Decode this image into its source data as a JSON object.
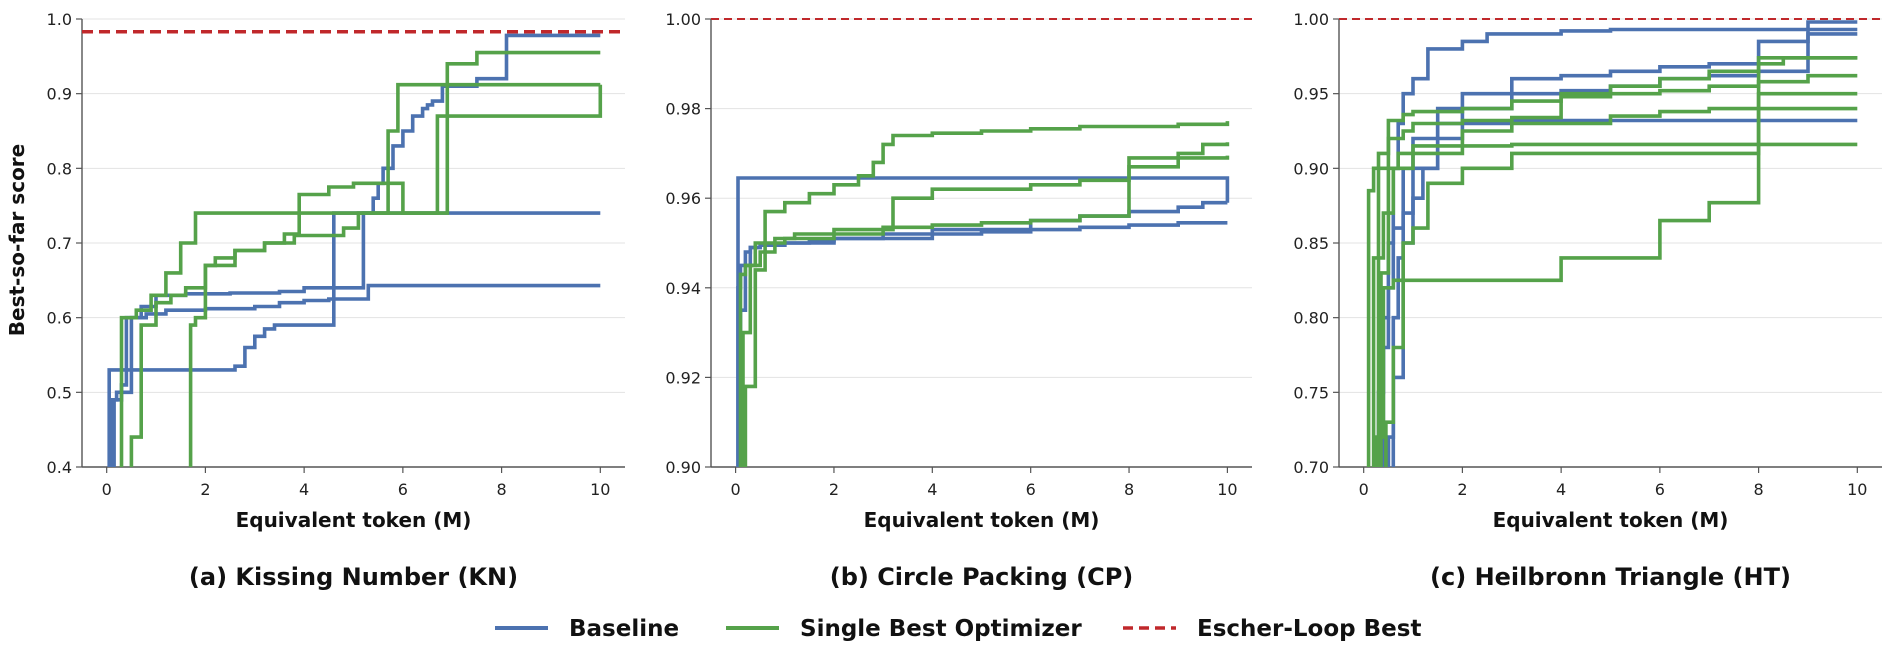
{
  "ylabel": "Best-so-far score",
  "legend": {
    "placement": "bottom-center",
    "items": [
      {
        "label": "Baseline",
        "color": "#4c72b0",
        "style": "solid"
      },
      {
        "label": "Single Best Optimizer",
        "color": "#55a24a",
        "style": "solid"
      },
      {
        "label": "Escher-Loop Best",
        "color": "#c0282b",
        "style": "dashed"
      }
    ]
  },
  "chart_data": [
    {
      "type": "line",
      "title": "(a) Kissing Number (KN)",
      "xlabel": "Equivalent token (M)",
      "ylabel": "Best-so-far score",
      "xlim": [
        -0.5,
        10.5
      ],
      "ylim": [
        0.4,
        1.0
      ],
      "xticks": [
        0,
        2,
        4,
        6,
        8,
        10
      ],
      "yticks": [
        0.4,
        0.5,
        0.6,
        0.7,
        0.8,
        0.9,
        1.0
      ],
      "ytick_labels": [
        "0.4",
        "0.5",
        "0.6",
        "0.7",
        "0.8",
        "0.9",
        "1.0"
      ],
      "grid": "horizontal",
      "reference": {
        "name": "Escher-Loop Best",
        "y": 0.983
      },
      "series": [
        {
          "group": "Baseline",
          "x": [
            0.05,
            0.05,
            0.1,
            0.1,
            0.2,
            0.3,
            0.5,
            0.6,
            1.0,
            1.8,
            2.6,
            2.8,
            3.0,
            3.2,
            3.4,
            4.6,
            4.6,
            10.0
          ],
          "y": [
            0.4,
            0.53,
            0.53,
            0.53,
            0.53,
            0.53,
            0.53,
            0.53,
            0.53,
            0.53,
            0.535,
            0.56,
            0.575,
            0.585,
            0.59,
            0.59,
            0.74,
            0.74
          ]
        },
        {
          "group": "Baseline",
          "x": [
            0.1,
            0.1,
            0.2,
            0.3,
            0.4,
            0.7,
            1.0,
            1.6,
            2.5,
            3.5,
            4.0,
            4.5,
            5.2,
            5.4,
            5.5,
            5.6,
            5.8,
            6.0,
            6.2,
            6.4,
            6.5,
            6.6,
            6.8,
            7.5,
            8.1,
            8.1,
            10.0
          ],
          "y": [
            0.4,
            0.49,
            0.5,
            0.51,
            0.6,
            0.615,
            0.63,
            0.632,
            0.633,
            0.635,
            0.64,
            0.64,
            0.74,
            0.76,
            0.78,
            0.8,
            0.83,
            0.85,
            0.87,
            0.88,
            0.885,
            0.89,
            0.91,
            0.92,
            0.935,
            0.978,
            0.978
          ]
        },
        {
          "group": "Baseline",
          "x": [
            0.15,
            0.15,
            0.3,
            0.5,
            0.8,
            1.2,
            2.0,
            3.0,
            3.5,
            4.0,
            4.5,
            5.3,
            10.0
          ],
          "y": [
            0.4,
            0.49,
            0.5,
            0.6,
            0.605,
            0.61,
            0.612,
            0.615,
            0.62,
            0.623,
            0.625,
            0.643,
            0.643
          ]
        },
        {
          "group": "Single Best Optimizer",
          "x": [
            0.3,
            0.3,
            0.6,
            0.9,
            1.2,
            1.5,
            1.8,
            2.2,
            2.7,
            3.1,
            3.4,
            3.7,
            4.0,
            4.3,
            4.6,
            5.0,
            5.3,
            5.5,
            5.7,
            5.9,
            10.0
          ],
          "y": [
            0.4,
            0.6,
            0.61,
            0.63,
            0.66,
            0.7,
            0.74,
            0.74,
            0.74,
            0.74,
            0.74,
            0.74,
            0.74,
            0.74,
            0.74,
            0.74,
            0.74,
            0.74,
            0.85,
            0.912,
            0.912
          ]
        },
        {
          "group": "Single Best Optimizer",
          "x": [
            0.5,
            0.5,
            0.7,
            1.0,
            1.3,
            1.6,
            2.0,
            2.6,
            3.2,
            3.6,
            3.9,
            4.5,
            5.0,
            5.5,
            6.0,
            6.4,
            6.7,
            6.9,
            7.5,
            10.0
          ],
          "y": [
            0.4,
            0.44,
            0.59,
            0.62,
            0.63,
            0.64,
            0.67,
            0.69,
            0.7,
            0.712,
            0.765,
            0.775,
            0.78,
            0.78,
            0.74,
            0.74,
            0.74,
            0.94,
            0.955,
            0.955
          ]
        },
        {
          "group": "Single Best Optimizer",
          "x": [
            1.7,
            1.7,
            1.8,
            2.0,
            2.2,
            2.6,
            3.2,
            3.8,
            4.3,
            4.8,
            5.1,
            5.6,
            6.1,
            6.7,
            10.0
          ],
          "y": [
            0.4,
            0.59,
            0.6,
            0.67,
            0.68,
            0.69,
            0.7,
            0.71,
            0.71,
            0.72,
            0.74,
            0.74,
            0.74,
            0.87,
            0.912
          ]
        }
      ]
    },
    {
      "type": "line",
      "title": "(b) Circle Packing (CP)",
      "xlabel": "Equivalent token (M)",
      "ylabel": "",
      "xlim": [
        -0.5,
        10.5
      ],
      "ylim": [
        0.9,
        1.0
      ],
      "xticks": [
        0,
        2,
        4,
        6,
        8,
        10
      ],
      "yticks": [
        0.9,
        0.92,
        0.94,
        0.96,
        0.98,
        1.0
      ],
      "ytick_labels": [
        "0.90",
        "0.92",
        "0.94",
        "0.96",
        "0.98",
        "1.00"
      ],
      "grid": "horizontal",
      "reference": {
        "name": "Escher-Loop Best",
        "y": 1.0
      },
      "series": [
        {
          "group": "Baseline",
          "x": [
            0.05,
            0.05,
            10.0,
            10.0
          ],
          "y": [
            0.9,
            0.9645,
            0.9645,
            0.959
          ]
        },
        {
          "group": "Baseline",
          "x": [
            0.05,
            0.05,
            0.1,
            0.2,
            0.3,
            0.5,
            1.0,
            1.5,
            2.0,
            3.0,
            4.0,
            5.0,
            6.0,
            7.0,
            8.0,
            9.0,
            9.8,
            10.0
          ],
          "y": [
            0.9,
            0.94,
            0.945,
            0.948,
            0.949,
            0.9495,
            0.95,
            0.9505,
            0.951,
            0.951,
            0.952,
            0.9525,
            0.953,
            0.9535,
            0.954,
            0.9545,
            0.9545,
            0.9545
          ]
        },
        {
          "group": "Baseline",
          "x": [
            0.1,
            0.1,
            0.2,
            0.3,
            0.5,
            1.0,
            2.0,
            3.0,
            4.0,
            6.0,
            7.0,
            8.0,
            9.0,
            9.5,
            10.0
          ],
          "y": [
            0.9,
            0.935,
            0.945,
            0.949,
            0.9495,
            0.95,
            0.951,
            0.952,
            0.953,
            0.955,
            0.956,
            0.957,
            0.958,
            0.959,
            0.959
          ]
        },
        {
          "group": "Single Best Optimizer",
          "x": [
            0.1,
            0.1,
            0.2,
            0.4,
            0.6,
            1.0,
            1.5,
            2.0,
            2.5,
            2.8,
            3.0,
            3.2,
            4.0,
            5.0,
            6.0,
            7.0,
            8.0,
            9.0,
            10.0
          ],
          "y": [
            0.9,
            0.943,
            0.945,
            0.95,
            0.957,
            0.959,
            0.961,
            0.963,
            0.965,
            0.968,
            0.972,
            0.974,
            0.9745,
            0.975,
            0.9755,
            0.976,
            0.976,
            0.9765,
            0.9772
          ]
        },
        {
          "group": "Single Best Optimizer",
          "x": [
            0.15,
            0.15,
            0.3,
            0.5,
            0.8,
            1.2,
            2.0,
            3.0,
            4.0,
            5.0,
            6.0,
            7.0,
            7.6,
            8.0,
            9.0,
            9.5,
            10.0
          ],
          "y": [
            0.9,
            0.93,
            0.945,
            0.948,
            0.951,
            0.952,
            0.953,
            0.9535,
            0.954,
            0.9545,
            0.955,
            0.956,
            0.956,
            0.969,
            0.97,
            0.972,
            0.9725
          ]
        },
        {
          "group": "Single Best Optimizer",
          "x": [
            0.2,
            0.2,
            0.4,
            0.6,
            1.0,
            2.0,
            3.0,
            3.2,
            4.0,
            5.0,
            6.0,
            7.0,
            8.0,
            9.0,
            10.0
          ],
          "y": [
            0.9,
            0.918,
            0.944,
            0.95,
            0.951,
            0.952,
            0.953,
            0.96,
            0.962,
            0.962,
            0.963,
            0.964,
            0.967,
            0.969,
            0.9695
          ]
        }
      ]
    },
    {
      "type": "line",
      "title": "(c) Heilbronn Triangle (HT)",
      "xlabel": "Equivalent token (M)",
      "ylabel": "",
      "xlim": [
        -0.5,
        10.5
      ],
      "ylim": [
        0.7,
        1.0
      ],
      "xticks": [
        0,
        2,
        4,
        6,
        8,
        10
      ],
      "yticks": [
        0.7,
        0.75,
        0.8,
        0.85,
        0.9,
        0.95,
        1.0
      ],
      "ytick_labels": [
        "0.70",
        "0.75",
        "0.80",
        "0.85",
        "0.90",
        "0.95",
        "1.00"
      ],
      "grid": "horizontal",
      "reference": {
        "name": "Escher-Loop Best",
        "y": 1.0
      },
      "series": [
        {
          "group": "Baseline",
          "x": [
            0.3,
            0.3,
            0.4,
            0.5,
            0.6,
            0.7,
            0.8,
            1.0,
            1.3,
            2.0,
            2.5,
            3.0,
            4.0,
            5.0,
            6.0,
            7.0,
            7.5,
            8.0,
            9.0,
            10.0
          ],
          "y": [
            0.7,
            0.75,
            0.8,
            0.85,
            0.9,
            0.93,
            0.95,
            0.96,
            0.98,
            0.985,
            0.99,
            0.99,
            0.992,
            0.993,
            0.993,
            0.993,
            0.993,
            0.993,
            0.993,
            0.993
          ]
        },
        {
          "group": "Baseline",
          "x": [
            0.4,
            0.4,
            0.5,
            0.6,
            0.8,
            1.0,
            1.5,
            2.0,
            3.0,
            4.0,
            5.0,
            6.0,
            7.0,
            8.0,
            9.0,
            10.0
          ],
          "y": [
            0.7,
            0.78,
            0.82,
            0.86,
            0.9,
            0.92,
            0.94,
            0.95,
            0.96,
            0.962,
            0.965,
            0.968,
            0.97,
            0.985,
            0.99,
            0.99
          ]
        },
        {
          "group": "Baseline",
          "x": [
            0.5,
            0.5,
            0.6,
            0.7,
            0.8,
            1.0,
            1.5,
            2.0,
            3.0,
            4.0,
            5.0,
            6.0,
            7.0,
            8.0,
            9.0,
            10.0
          ],
          "y": [
            0.7,
            0.72,
            0.8,
            0.84,
            0.87,
            0.9,
            0.93,
            0.94,
            0.95,
            0.952,
            0.955,
            0.96,
            0.962,
            0.965,
            0.998,
            0.998
          ]
        },
        {
          "group": "Baseline",
          "x": [
            0.6,
            0.6,
            0.8,
            1.0,
            1.2,
            1.5,
            2.0,
            3.0,
            4.0,
            6.0,
            8.0,
            10.0
          ],
          "y": [
            0.7,
            0.76,
            0.85,
            0.88,
            0.9,
            0.92,
            0.93,
            0.932,
            0.932,
            0.932,
            0.932,
            0.932
          ]
        },
        {
          "group": "Single Best Optimizer",
          "x": [
            0.1,
            0.1,
            0.2,
            0.3,
            0.5,
            0.8,
            1.0,
            2.0,
            3.0,
            4.0,
            5.0,
            6.0,
            7.0,
            8.0,
            8.5,
            10.0
          ],
          "y": [
            0.7,
            0.885,
            0.9,
            0.91,
            0.932,
            0.936,
            0.938,
            0.94,
            0.945,
            0.95,
            0.955,
            0.96,
            0.965,
            0.97,
            0.974,
            0.974
          ]
        },
        {
          "group": "Single Best Optimizer",
          "x": [
            0.2,
            0.2,
            0.4,
            0.6,
            1.0,
            2.0,
            3.0,
            4.0,
            5.0,
            6.0,
            7.0,
            8.0,
            10.0
          ],
          "y": [
            0.7,
            0.84,
            0.87,
            0.9,
            0.91,
            0.925,
            0.93,
            0.93,
            0.935,
            0.938,
            0.94,
            0.94,
            0.94
          ]
        },
        {
          "group": "Single Best Optimizer",
          "x": [
            0.25,
            0.25,
            0.4,
            0.6,
            0.8,
            1.2,
            2.0,
            3.0,
            4.0,
            5.0,
            6.0,
            7.0,
            8.0,
            10.0
          ],
          "y": [
            0.7,
            0.72,
            0.82,
            0.825,
            0.825,
            0.825,
            0.825,
            0.825,
            0.84,
            0.84,
            0.865,
            0.877,
            0.974,
            0.974
          ]
        },
        {
          "group": "Single Best Optimizer",
          "x": [
            0.3,
            0.3,
            0.5,
            0.8,
            1.0,
            1.5,
            2.0,
            3.0,
            4.0,
            5.0,
            6.0,
            7.0,
            8.0,
            9.0,
            10.0
          ],
          "y": [
            0.7,
            0.9,
            0.92,
            0.925,
            0.93,
            0.93,
            0.932,
            0.934,
            0.948,
            0.95,
            0.952,
            0.955,
            0.958,
            0.962,
            0.962
          ]
        },
        {
          "group": "Single Best Optimizer",
          "x": [
            0.35,
            0.35,
            0.5,
            0.7,
            1.0,
            2.0,
            3.0,
            4.0,
            5.0,
            6.0,
            8.0,
            10.0
          ],
          "y": [
            0.7,
            0.83,
            0.9,
            0.91,
            0.915,
            0.915,
            0.916,
            0.916,
            0.916,
            0.916,
            0.916,
            0.916
          ]
        },
        {
          "group": "Single Best Optimizer",
          "x": [
            0.45,
            0.45,
            0.6,
            0.8,
            1.0,
            1.3,
            2.0,
            3.0,
            4.0,
            5.0,
            6.0,
            7.0,
            8.0,
            10.0
          ],
          "y": [
            0.7,
            0.73,
            0.78,
            0.85,
            0.86,
            0.89,
            0.9,
            0.91,
            0.91,
            0.91,
            0.91,
            0.91,
            0.95,
            0.95
          ]
        }
      ]
    }
  ]
}
